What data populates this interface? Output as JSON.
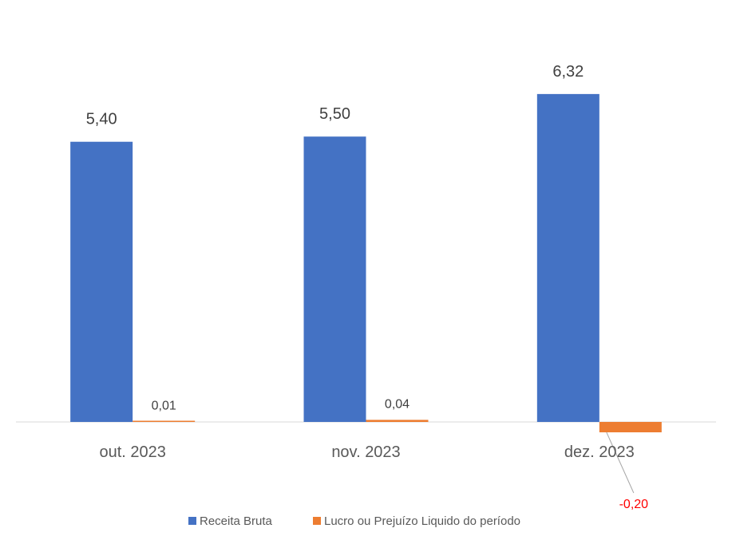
{
  "chart_data": {
    "type": "bar",
    "categories": [
      "out. 2023",
      "nov. 2023",
      "dez. 2023"
    ],
    "series": [
      {
        "name": "Receita Bruta",
        "color": "#4472C4",
        "values": [
          5.4,
          5.5,
          6.32
        ],
        "labels": [
          "5,40",
          "5,50",
          "6,32"
        ]
      },
      {
        "name": "Lucro ou Prejuízo Liquido do período",
        "color": "#ED7D31",
        "values": [
          0.01,
          0.04,
          -0.2
        ],
        "labels": [
          "0,01",
          "0,04",
          "-0,20"
        ]
      }
    ],
    "negative_label_color": "#FF0000",
    "title": "",
    "xlabel": "",
    "ylabel": "",
    "ylim": [
      -0.3,
      6.6
    ],
    "grid": false,
    "legend_position": "bottom"
  }
}
